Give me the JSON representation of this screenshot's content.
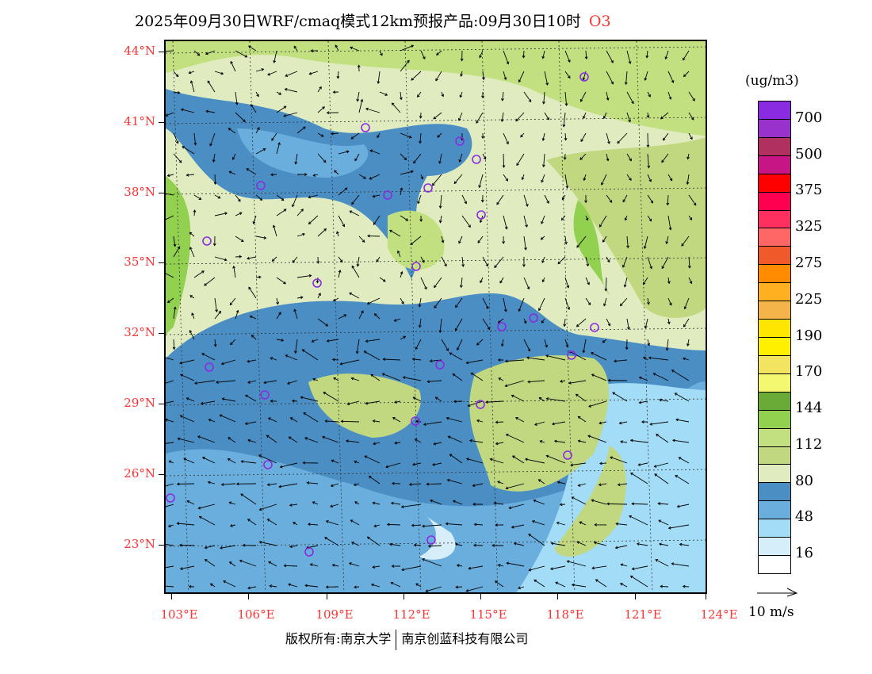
{
  "title": {
    "main": "2025年09月30日WRF/cmaq模式12km预报产品:09月30日10时",
    "species": "O3"
  },
  "lat_labels": [
    "44°N",
    "41°N",
    "38°N",
    "35°N",
    "32°N",
    "29°N",
    "26°N",
    "23°N"
  ],
  "lon_labels": [
    "103°E",
    "106°E",
    "109°E",
    "112°E",
    "115°E",
    "118°E",
    "121°E",
    "124°E"
  ],
  "colorbar": {
    "unit": "(ug/m3)",
    "labels": [
      "700",
      "500",
      "375",
      "325",
      "275",
      "225",
      "190",
      "170",
      "144",
      "112",
      "80",
      "48",
      "16"
    ],
    "colors": [
      "#8a2be2",
      "#9932cc",
      "#b03060",
      "#c71585",
      "#ff0000",
      "#ff0050",
      "#ff3060",
      "#ff6666",
      "#f05a2a",
      "#ff8c00",
      "#ffb020",
      "#f5b44a",
      "#ffe600",
      "#fff000",
      "#f2e460",
      "#f4f870",
      "#6aaa36",
      "#92d050",
      "#c2e080",
      "#c2d880",
      "#e0ecc0",
      "#4a8ec4",
      "#6aaede",
      "#a2dcf6",
      "#d6eefa",
      "#ffffff"
    ]
  },
  "vector_legend": {
    "label": "10 m/s"
  },
  "copyright": {
    "left": "版权所有:南京大学",
    "right": "南京创蓝科技有限公司"
  }
}
